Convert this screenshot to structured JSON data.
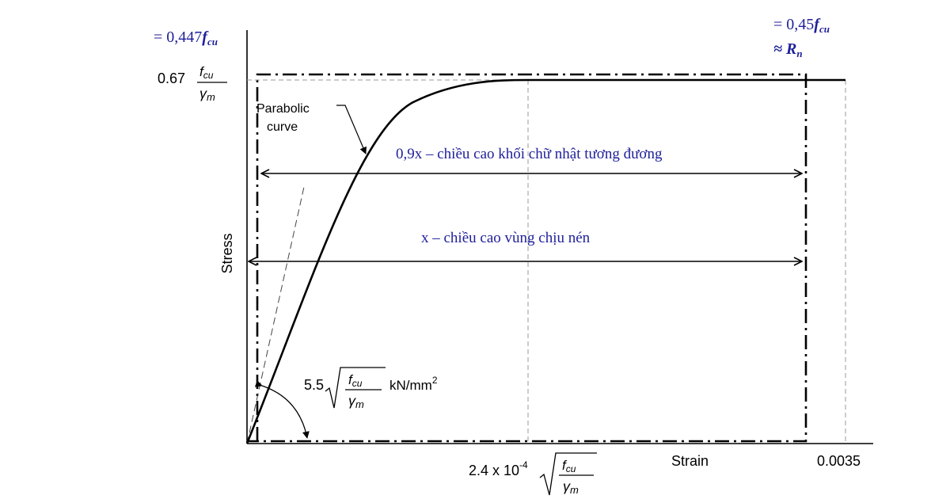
{
  "annotations": {
    "top_left_prefix": "= 0,447",
    "top_right_prefix": "= 0,45",
    "f_symbol": "f",
    "cu_subscript": "cu",
    "approx_prefix": "≈ ",
    "r_symbol": "R",
    "n_subscript": "n",
    "equiv_rect_text": "0,9x – chiều cao khối chữ nhật tương đương",
    "compression_text": "x – chiều cao vùng chịu nén"
  },
  "axes": {
    "y_label": "Stress",
    "x_label": "Strain",
    "x_end_value": "0.0035"
  },
  "formulas": {
    "peak_coeff": "0.67",
    "f": "f",
    "cu": "cu",
    "gamma": "γ",
    "m": "m",
    "parabolic_line1": "Parabolic",
    "parabolic_line2": "curve",
    "slope_coeff": "5.5",
    "slope_unit": "kN/mm",
    "slope_unit_exp": "2",
    "strain_prefix": "2.4 x 10",
    "strain_exp": "-4"
  },
  "colors": {
    "annotation_blue": "#1f1f9a",
    "line": "#000000",
    "guide": "#999999"
  }
}
